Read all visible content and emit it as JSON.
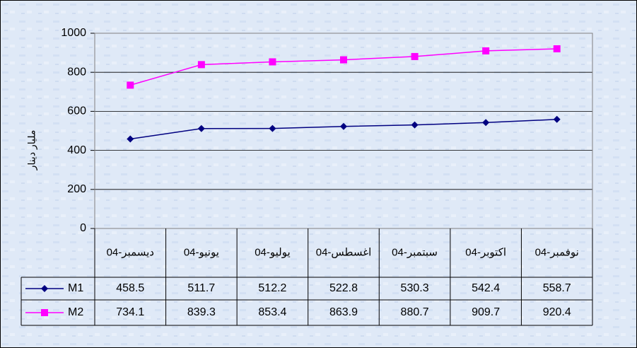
{
  "chart_data": {
    "type": "line",
    "y_label": "مليار دينار",
    "categories": [
      "ديسمبر-04",
      "يونيو-04",
      "يوليو-04",
      "اغسطس-04",
      "سبتمبر-04",
      "اكتوبر-04",
      "نوفمبر-04"
    ],
    "series": [
      {
        "name": "M1",
        "color": "#000080",
        "marker": "diamond",
        "values": [
          458.5,
          511.7,
          512.2,
          522.8,
          530.3,
          542.4,
          558.7
        ]
      },
      {
        "name": "M2",
        "color": "#ff00ff",
        "marker": "square",
        "values": [
          734.1,
          839.3,
          853.4,
          863.9,
          880.7,
          909.7,
          920.4
        ]
      }
    ],
    "ylim": [
      0,
      1000
    ],
    "yticks": [
      0,
      200,
      400,
      600,
      800,
      1000
    ],
    "grid": true,
    "data_table": true
  }
}
